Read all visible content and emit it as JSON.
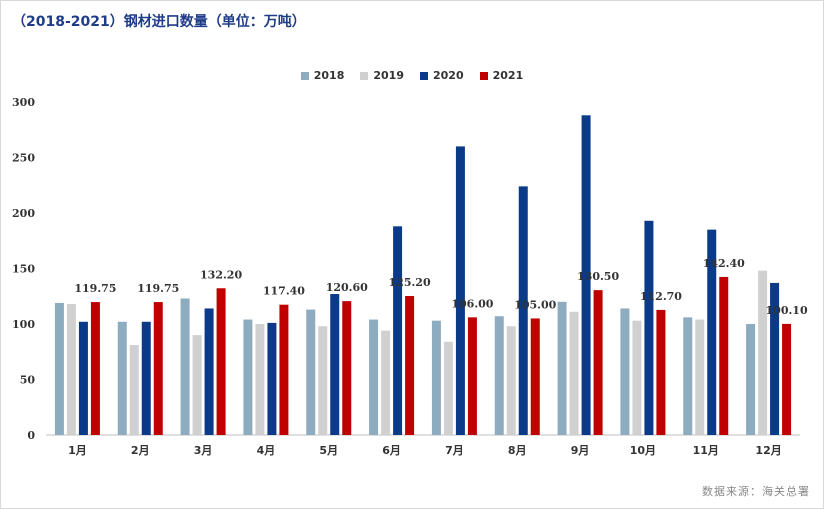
{
  "title": "（2018-2021）钢材进口数量（单位：万吨）",
  "source": "数据来源：海关总署",
  "chart_data": {
    "type": "bar",
    "categories": [
      "1月",
      "2月",
      "3月",
      "4月",
      "5月",
      "6月",
      "7月",
      "8月",
      "9月",
      "10月",
      "11月",
      "12月"
    ],
    "ylim": [
      0,
      300
    ],
    "yticks": [
      0,
      50,
      100,
      150,
      200,
      250,
      300
    ],
    "legend_position": "top-center",
    "grid": false,
    "series": [
      {
        "name": "2018",
        "color": "#8eacc0",
        "values": [
          119,
          102,
          123,
          104,
          113,
          104,
          103,
          107,
          120,
          114,
          106,
          100
        ]
      },
      {
        "name": "2019",
        "color": "#d0d0d0",
        "values": [
          118,
          81,
          90,
          100,
          98,
          94,
          84,
          98,
          111,
          103,
          104,
          148
        ]
      },
      {
        "name": "2020",
        "color": "#0a3a88",
        "values": [
          102,
          102,
          114,
          101,
          127,
          188,
          260,
          224,
          288,
          193,
          185,
          137
        ]
      },
      {
        "name": "2021",
        "color": "#c00000",
        "values": [
          119.75,
          119.75,
          132.2,
          117.4,
          120.6,
          125.2,
          106.0,
          105.0,
          130.5,
          112.7,
          142.4,
          100.1
        ]
      }
    ],
    "data_labels": [
      "119.75",
      "119.75",
      "132.20",
      "117.40",
      "120.60",
      "125.20",
      "106.00",
      "105.00",
      "130.50",
      "112.70",
      "142.40",
      "100.10"
    ]
  }
}
